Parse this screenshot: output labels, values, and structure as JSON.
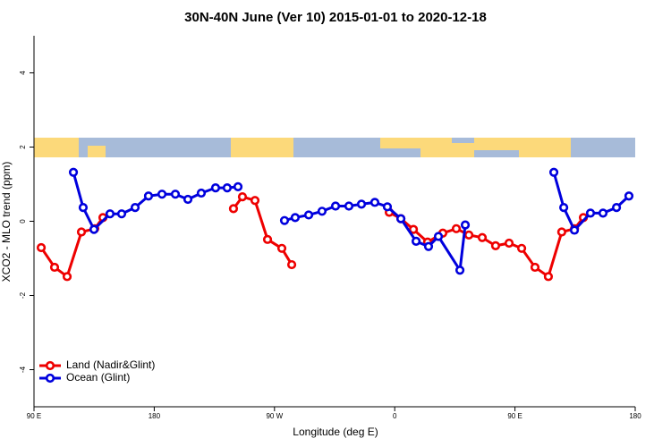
{
  "chart_data": {
    "type": "line",
    "title": "30N-40N June (Ver 10)   2015-01-01 to 2020-12-18",
    "x_label": "Longitude (deg E)",
    "y_label": "XCO2 - MLO trend (ppm)",
    "xlim": [
      90,
      540
    ],
    "ylim": [
      -5,
      5
    ],
    "xticks": [
      {
        "value": 90,
        "label": "90 E"
      },
      180,
      {
        "value": 270,
        "label": "90 W"
      },
      {
        "value": 360,
        "label": "0"
      },
      {
        "value": 450,
        "label": "90 E"
      },
      {
        "value": 540,
        "label": "180"
      }
    ],
    "yticks": [
      -4,
      -2,
      0,
      2,
      4
    ],
    "legend": "bottom-left",
    "series": [
      {
        "name": "Land (Nadir&Glint)",
        "color": "#ee0000",
        "x": [
          95.4,
          105.4,
          114.8,
          125.5,
          135.5,
          141.6,
          null,
          239.3,
          246,
          255.4,
          264.8,
          275.5,
          282.9,
          null,
          355.9,
          364.6,
          374,
          384.6,
          396,
          406.1,
          415.5,
          425.5,
          435.5,
          445.6,
          455,
          465,
          475,
          485,
          494.6,
          501.2
        ],
        "values": [
          -0.71,
          -1.24,
          -1.49,
          -0.29,
          -0.2,
          0.1,
          null,
          0.34,
          0.66,
          0.56,
          -0.49,
          -0.73,
          -1.17,
          null,
          0.24,
          0.07,
          -0.22,
          -0.56,
          -0.32,
          -0.2,
          -0.37,
          -0.44,
          -0.66,
          -0.59,
          -0.73,
          -1.24,
          -1.49,
          -0.29,
          -0.2,
          0.1
        ]
      },
      {
        "name": "Ocean (Glint)",
        "color": "#0000dd",
        "x": [
          119.5,
          126.8,
          134.9,
          146.9,
          155.6,
          165.7,
          175.7,
          185.8,
          195.8,
          205.2,
          215.2,
          225.9,
          234.6,
          242.7,
          null,
          277.5,
          285.5,
          295.6,
          305.6,
          315.7,
          325.7,
          335.1,
          345.1,
          354.5,
          364.6,
          376,
          385.3,
          392.7,
          408.8,
          412.8,
          null,
          479.1,
          486.5,
          494.5,
          506.5,
          515.9,
          526,
          535.3
        ],
        "values": [
          1.32,
          0.37,
          -0.22,
          0.2,
          0.2,
          0.37,
          0.68,
          0.73,
          0.73,
          0.59,
          0.76,
          0.9,
          0.9,
          0.93,
          null,
          0.02,
          0.1,
          0.17,
          0.27,
          0.41,
          0.41,
          0.46,
          0.51,
          0.39,
          0.07,
          -0.54,
          -0.68,
          -0.41,
          -1.32,
          -0.1,
          null,
          1.32,
          0.37,
          -0.24,
          0.22,
          0.22,
          0.37,
          0.68
        ]
      }
    ]
  }
}
